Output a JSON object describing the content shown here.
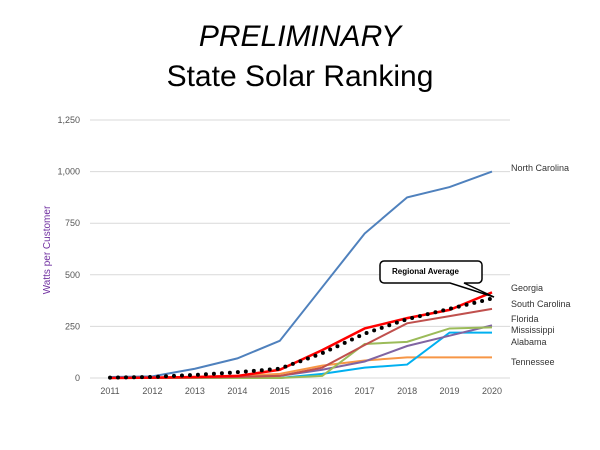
{
  "title_line1": "PRELIMINARY",
  "title_line2": "State Solar Ranking",
  "chart_data": {
    "type": "line",
    "title": "PRELIMINARY State Solar Ranking",
    "xlabel": "",
    "ylabel": "Watts per Customer",
    "x": [
      2011,
      2012,
      2013,
      2014,
      2015,
      2016,
      2017,
      2018,
      2019,
      2020
    ],
    "ylim": [
      0,
      1250
    ],
    "yticks": [
      "0",
      "250",
      "500",
      "750",
      "1,000",
      "1,250"
    ],
    "grid": true,
    "legend": "direct labels at right",
    "series": [
      {
        "name": "North Carolina",
        "color": "#4F81BD",
        "style": "solid",
        "values": [
          5,
          8,
          45,
          95,
          180,
          440,
          700,
          875,
          925,
          1000
        ]
      },
      {
        "name": "Georgia",
        "color": "#FF0000",
        "style": "solid",
        "values": [
          0,
          2,
          5,
          10,
          40,
          135,
          240,
          290,
          330,
          415
        ]
      },
      {
        "name": "South Carolina",
        "color": "#C0504D",
        "style": "solid",
        "values": [
          0,
          0,
          2,
          5,
          10,
          50,
          160,
          265,
          300,
          335
        ]
      },
      {
        "name": "Florida",
        "color": "#9BBB59",
        "style": "solid",
        "values": [
          0,
          0,
          0,
          0,
          0,
          10,
          165,
          175,
          240,
          245
        ]
      },
      {
        "name": "Mississippi",
        "color": "#00B0F0",
        "style": "solid",
        "values": [
          0,
          0,
          0,
          0,
          0,
          20,
          50,
          65,
          220,
          220
        ]
      },
      {
        "name": "Alabama",
        "color": "#8064A2",
        "style": "solid",
        "values": [
          0,
          0,
          2,
          5,
          10,
          40,
          80,
          155,
          205,
          255
        ]
      },
      {
        "name": "Tennessee",
        "color": "#F79646",
        "style": "solid",
        "values": [
          0,
          2,
          5,
          10,
          20,
          60,
          85,
          100,
          100,
          100
        ]
      },
      {
        "name": "Regional Average",
        "color": "#000000",
        "style": "dotted",
        "values": [
          2,
          5,
          15,
          28,
          45,
          120,
          215,
          285,
          335,
          385
        ]
      }
    ],
    "annotation": "Regional Average"
  }
}
